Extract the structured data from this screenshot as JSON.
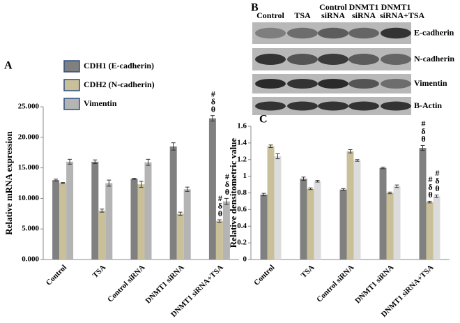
{
  "chart_data": [
    {
      "type": "bar",
      "panel": "A",
      "ylabel": "Relative mRNA expression",
      "categories": [
        "Control",
        "TSA",
        "Control siRNA",
        "DNMT1 siRNA",
        "DNMT1 siRNA+TSA"
      ],
      "series": [
        {
          "name": "CDH1 (E-cadherin)",
          "color": "#808080",
          "values": [
            13.0,
            16.0,
            13.2,
            18.5,
            23.1
          ],
          "errors": [
            0.15,
            0.3,
            0.1,
            0.6,
            0.45
          ]
        },
        {
          "name": "CDH2 (N-cadherin)",
          "color": "#c9c09a",
          "values": [
            12.5,
            8.0,
            12.3,
            7.5,
            6.3
          ],
          "errors": [
            0.1,
            0.25,
            0.5,
            0.25,
            0.2
          ]
        },
        {
          "name": "Vimentin",
          "color": "#b4b4b4",
          "values": [
            16.0,
            12.5,
            15.9,
            11.5,
            9.5
          ],
          "errors": [
            0.4,
            0.5,
            0.5,
            0.35,
            0.5
          ]
        }
      ],
      "ylim": [
        0,
        25
      ],
      "yticks": [
        {
          "value": 0,
          "label": "0.000"
        },
        {
          "value": 5,
          "label": "5.000"
        },
        {
          "value": 10,
          "label": "10.000"
        },
        {
          "value": 15,
          "label": "15.000"
        },
        {
          "value": 20,
          "label": "20.000"
        },
        {
          "value": 25,
          "label": "25.000"
        }
      ],
      "legend": "upper left",
      "annotations": [
        {
          "series": 0,
          "category": 4,
          "text": [
            "#",
            "δ",
            "θ"
          ]
        },
        {
          "series": 1,
          "category": 4,
          "text": [
            "#",
            "δ",
            "θ"
          ]
        },
        {
          "series": 2,
          "category": 4,
          "text": [
            "#",
            "δ",
            "θ"
          ]
        }
      ]
    },
    {
      "type": "bar",
      "panel": "C",
      "ylabel": "Relative densitometric value",
      "categories": [
        "Control",
        "TSA",
        "Control siRNA",
        "DNMT1 siRNA",
        "DNMT1 siRNA+TSA"
      ],
      "series": [
        {
          "color": "#808080",
          "values": [
            0.78,
            0.97,
            0.84,
            1.1,
            1.34
          ],
          "errors": [
            0.015,
            0.02,
            0.012,
            0.01,
            0.03
          ]
        },
        {
          "color": "#c9c09a",
          "values": [
            1.36,
            0.85,
            1.3,
            0.8,
            0.69
          ],
          "errors": [
            0.015,
            0.01,
            0.02,
            0.01,
            0.01
          ]
        },
        {
          "color": "#dcdcdc",
          "values": [
            1.24,
            0.94,
            1.19,
            0.88,
            0.76
          ],
          "errors": [
            0.03,
            0.01,
            0.01,
            0.015,
            0.015
          ]
        }
      ],
      "ylim": [
        0,
        1.6
      ],
      "yticks": [
        0,
        0.2,
        0.4,
        0.6,
        0.8,
        1,
        1.2,
        1.4,
        1.6
      ],
      "annotations": [
        {
          "series": 0,
          "category": 4,
          "text": [
            "#",
            "δ",
            "θ"
          ]
        },
        {
          "series": 1,
          "category": 4,
          "text": [
            "#",
            "δ",
            "θ"
          ]
        },
        {
          "series": 2,
          "category": 4,
          "text": [
            "#",
            "δ",
            "θ"
          ]
        }
      ]
    }
  ],
  "blot": {
    "panel": "B",
    "lanes": [
      "Control",
      "TSA",
      "Control siRNA",
      "DNMT1 siRNA",
      "DNMT1 siRNA+TSA"
    ],
    "bands": [
      "E-cadherin",
      "N-cadherin",
      "Vimentin",
      "B-Actin"
    ]
  }
}
